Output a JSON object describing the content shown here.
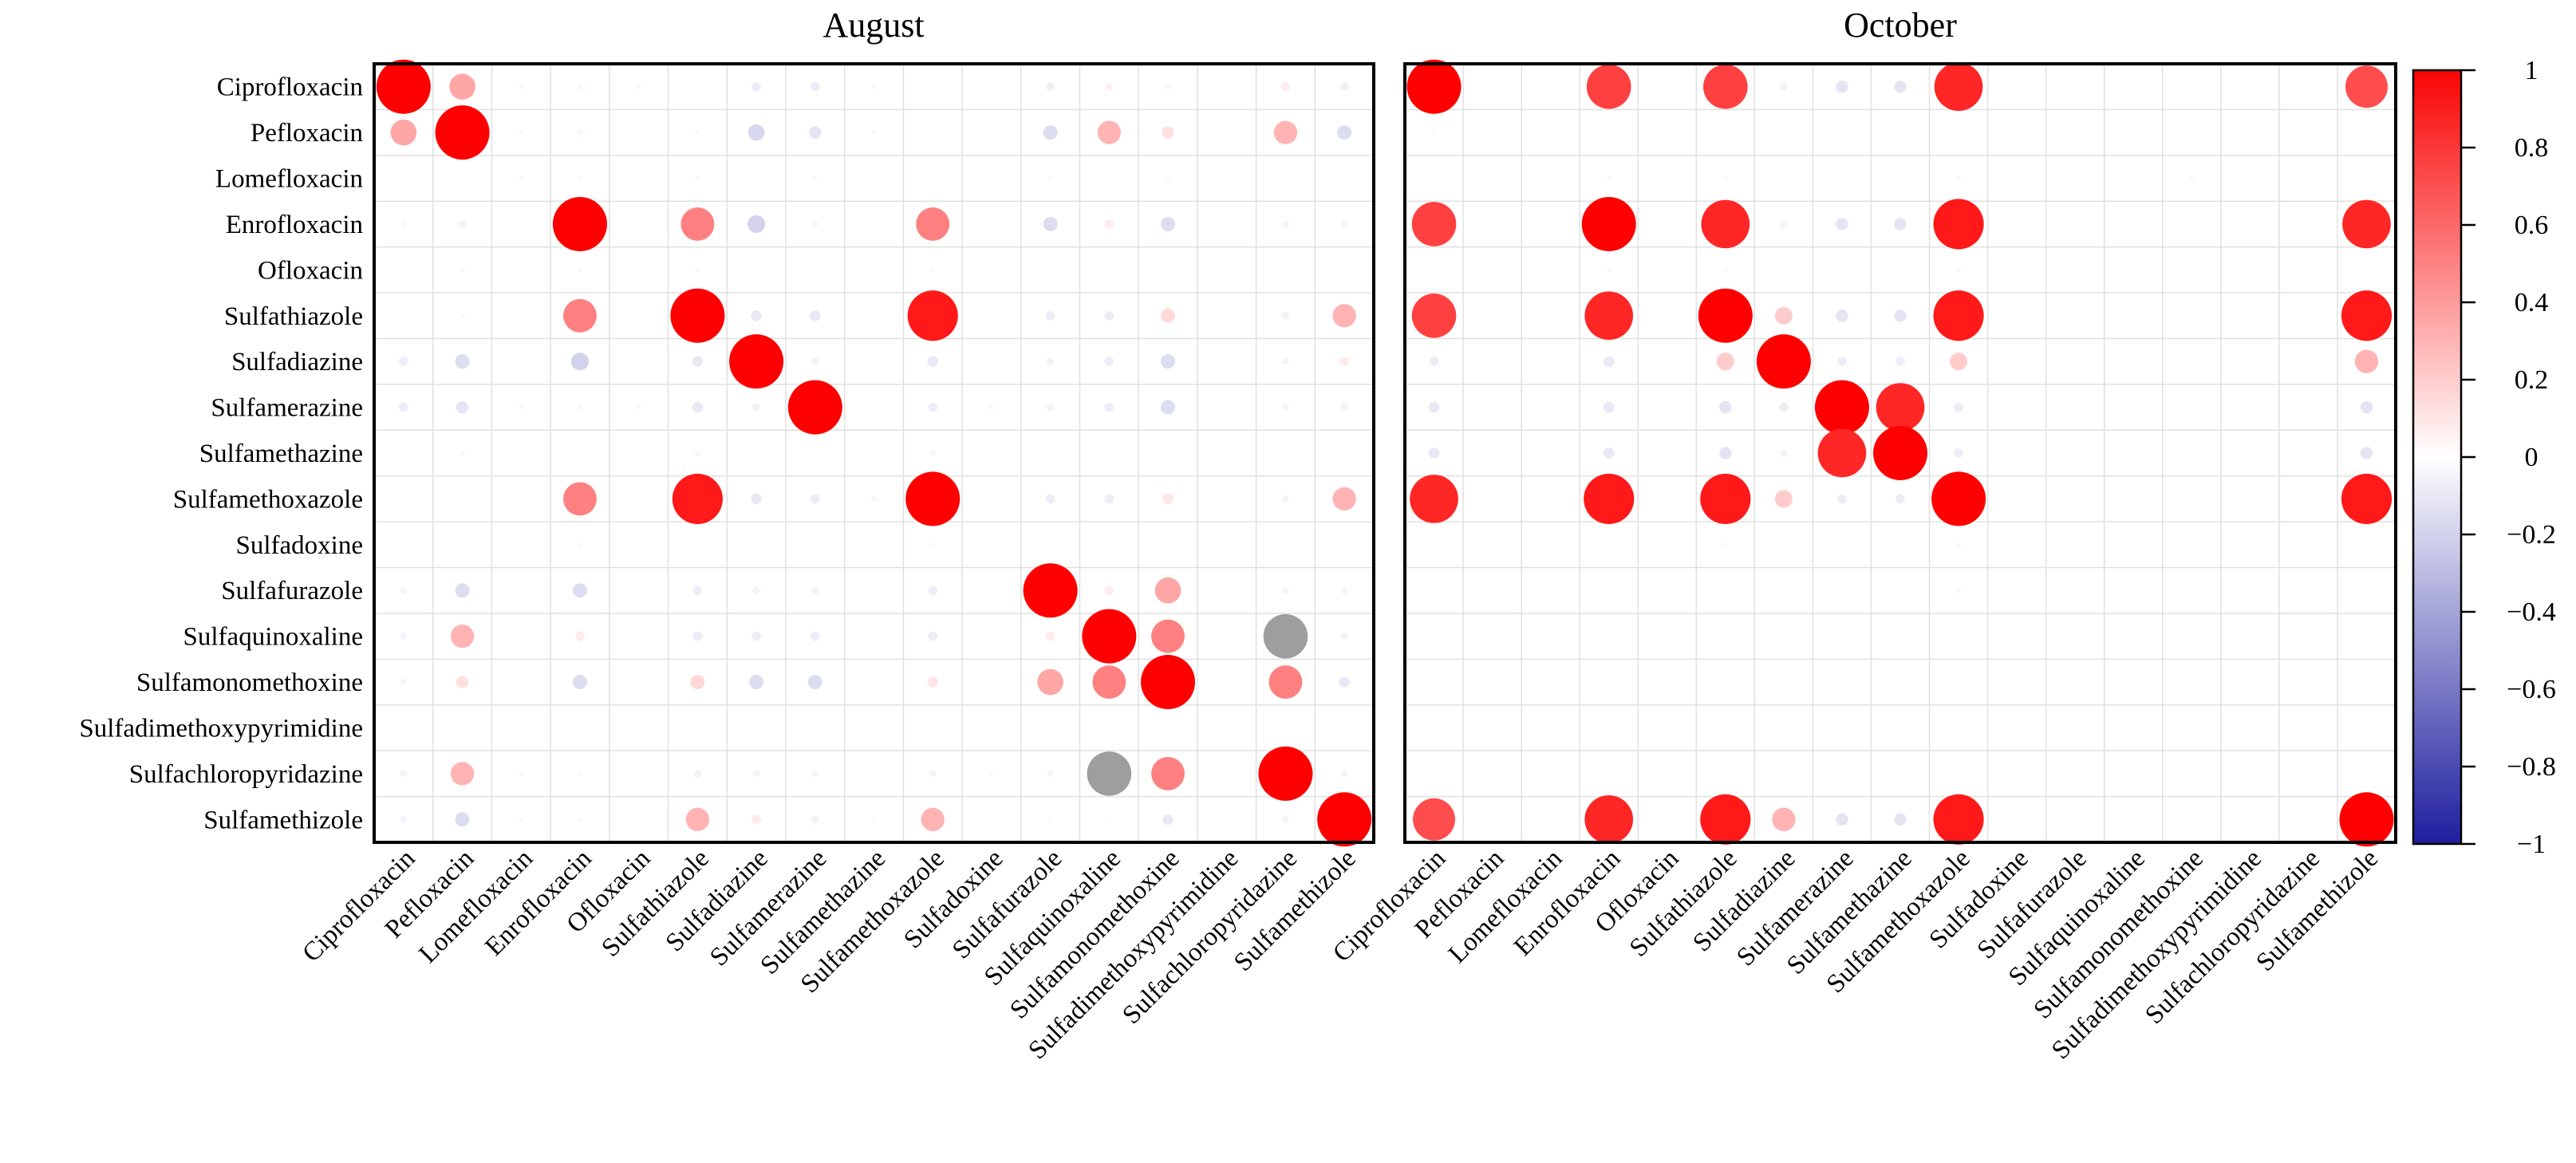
{
  "chart_data": {
    "type": "correlation-bubble-matrix",
    "title": "",
    "labels": [
      "Ciprofloxacin",
      "Pefloxacin",
      "Lomefloxacin",
      "Enrofloxacin",
      "Ofloxacin",
      "Sulfathiazole",
      "Sulfadiazine",
      "Sulfamerazine",
      "Sulfamethazine",
      "Sulfamethoxazole",
      "Sulfadoxine",
      "Sulfafurazole",
      "Sulfaquinoxaline",
      "Sulfamonomethoxine",
      "Sulfadimethoxypyrimidine",
      "Sulfachloropyridazine",
      "Sulfamethizole"
    ],
    "value_range": [
      -1,
      1
    ],
    "legend_position": "right",
    "grid": true,
    "panels": [
      {
        "title": "August",
        "cells": [
          [
            1,
            1,
            1
          ],
          [
            1,
            2,
            0.35
          ],
          [
            1,
            3,
            0.03
          ],
          [
            1,
            4,
            0.04
          ],
          [
            1,
            5,
            0.03
          ],
          [
            1,
            7,
            -0.08
          ],
          [
            1,
            8,
            -0.08
          ],
          [
            1,
            9,
            -0.03
          ],
          [
            1,
            12,
            -0.07
          ],
          [
            1,
            13,
            0.06
          ],
          [
            1,
            14,
            -0.04
          ],
          [
            1,
            16,
            0.08
          ],
          [
            1,
            17,
            -0.07
          ],
          [
            2,
            1,
            0.35
          ],
          [
            2,
            2,
            1
          ],
          [
            2,
            3,
            0.03
          ],
          [
            2,
            4,
            0.04
          ],
          [
            2,
            6,
            0.03
          ],
          [
            2,
            7,
            -0.18
          ],
          [
            2,
            8,
            -0.12
          ],
          [
            2,
            9,
            -0.03
          ],
          [
            2,
            12,
            -0.15
          ],
          [
            2,
            13,
            0.3
          ],
          [
            2,
            14,
            0.12
          ],
          [
            2,
            16,
            0.3
          ],
          [
            2,
            17,
            -0.15
          ],
          [
            3,
            3,
            0.03
          ],
          [
            3,
            4,
            0.03
          ],
          [
            3,
            6,
            0.03
          ],
          [
            3,
            8,
            0.03
          ],
          [
            3,
            12,
            0.03
          ],
          [
            3,
            14,
            0.03
          ],
          [
            4,
            1,
            0.04
          ],
          [
            4,
            2,
            -0.06
          ],
          [
            4,
            4,
            1
          ],
          [
            4,
            6,
            0.5
          ],
          [
            4,
            7,
            -0.2
          ],
          [
            4,
            8,
            -0.04
          ],
          [
            4,
            10,
            0.5
          ],
          [
            4,
            12,
            -0.15
          ],
          [
            4,
            13,
            0.08
          ],
          [
            4,
            14,
            -0.15
          ],
          [
            4,
            16,
            -0.05
          ],
          [
            4,
            17,
            -0.05
          ],
          [
            5,
            2,
            0.03
          ],
          [
            5,
            4,
            0.03
          ],
          [
            5,
            6,
            0.03
          ],
          [
            5,
            10,
            0.03
          ],
          [
            6,
            2,
            0.03
          ],
          [
            6,
            4,
            0.5
          ],
          [
            6,
            6,
            1
          ],
          [
            6,
            7,
            -0.1
          ],
          [
            6,
            8,
            -0.1
          ],
          [
            6,
            10,
            0.9
          ],
          [
            6,
            12,
            -0.08
          ],
          [
            6,
            13,
            -0.08
          ],
          [
            6,
            14,
            0.15
          ],
          [
            6,
            16,
            -0.06
          ],
          [
            6,
            17,
            0.3
          ],
          [
            7,
            1,
            -0.08
          ],
          [
            7,
            2,
            -0.15
          ],
          [
            7,
            4,
            -0.2
          ],
          [
            7,
            6,
            -0.1
          ],
          [
            7,
            7,
            1
          ],
          [
            7,
            8,
            -0.06
          ],
          [
            7,
            10,
            -0.1
          ],
          [
            7,
            12,
            -0.06
          ],
          [
            7,
            13,
            -0.08
          ],
          [
            7,
            14,
            -0.15
          ],
          [
            7,
            16,
            -0.05
          ],
          [
            7,
            17,
            0.08
          ],
          [
            8,
            1,
            -0.08
          ],
          [
            8,
            2,
            -0.12
          ],
          [
            8,
            3,
            0.03
          ],
          [
            8,
            4,
            -0.04
          ],
          [
            8,
            5,
            0.03
          ],
          [
            8,
            6,
            -0.1
          ],
          [
            8,
            7,
            -0.06
          ],
          [
            8,
            8,
            1
          ],
          [
            8,
            10,
            -0.08
          ],
          [
            8,
            11,
            0.03
          ],
          [
            8,
            12,
            -0.06
          ],
          [
            8,
            13,
            -0.08
          ],
          [
            8,
            14,
            -0.15
          ],
          [
            8,
            16,
            -0.05
          ],
          [
            8,
            17,
            -0.06
          ],
          [
            9,
            2,
            -0.03
          ],
          [
            9,
            6,
            -0.04
          ],
          [
            9,
            10,
            -0.04
          ],
          [
            10,
            4,
            0.5
          ],
          [
            10,
            6,
            0.9
          ],
          [
            10,
            7,
            -0.1
          ],
          [
            10,
            8,
            -0.08
          ],
          [
            10,
            9,
            -0.04
          ],
          [
            10,
            10,
            1
          ],
          [
            10,
            12,
            -0.08
          ],
          [
            10,
            13,
            -0.08
          ],
          [
            10,
            14,
            0.1
          ],
          [
            10,
            16,
            -0.05
          ],
          [
            10,
            17,
            0.3
          ],
          [
            11,
            4,
            0.03
          ],
          [
            11,
            10,
            0.03
          ],
          [
            12,
            1,
            -0.05
          ],
          [
            12,
            2,
            -0.15
          ],
          [
            12,
            4,
            -0.15
          ],
          [
            12,
            6,
            -0.08
          ],
          [
            12,
            7,
            -0.06
          ],
          [
            12,
            8,
            -0.06
          ],
          [
            12,
            10,
            -0.08
          ],
          [
            12,
            12,
            1
          ],
          [
            12,
            13,
            0.08
          ],
          [
            12,
            14,
            0.35
          ],
          [
            12,
            16,
            -0.05
          ],
          [
            12,
            17,
            -0.05
          ],
          [
            13,
            1,
            -0.05
          ],
          [
            13,
            2,
            0.3
          ],
          [
            13,
            4,
            0.08
          ],
          [
            13,
            6,
            -0.08
          ],
          [
            13,
            7,
            -0.08
          ],
          [
            13,
            8,
            -0.08
          ],
          [
            13,
            10,
            -0.08
          ],
          [
            13,
            12,
            0.08
          ],
          [
            13,
            13,
            1
          ],
          [
            13,
            14,
            0.5
          ],
          [
            13,
            17,
            -0.06
          ],
          [
            14,
            1,
            -0.05
          ],
          [
            14,
            2,
            0.12
          ],
          [
            14,
            4,
            -0.15
          ],
          [
            14,
            6,
            0.15
          ],
          [
            14,
            7,
            -0.15
          ],
          [
            14,
            8,
            -0.15
          ],
          [
            14,
            10,
            0.1
          ],
          [
            14,
            12,
            0.35
          ],
          [
            14,
            13,
            0.5
          ],
          [
            14,
            14,
            1
          ],
          [
            14,
            16,
            0.5
          ],
          [
            14,
            17,
            -0.1
          ],
          [
            16,
            1,
            -0.05
          ],
          [
            16,
            2,
            0.3
          ],
          [
            16,
            3,
            0.03
          ],
          [
            16,
            4,
            0.03
          ],
          [
            16,
            6,
            -0.06
          ],
          [
            16,
            7,
            -0.05
          ],
          [
            16,
            8,
            -0.05
          ],
          [
            16,
            10,
            -0.05
          ],
          [
            16,
            11,
            0.03
          ],
          [
            16,
            12,
            -0.05
          ],
          [
            16,
            14,
            0.5
          ],
          [
            16,
            16,
            1
          ],
          [
            16,
            17,
            -0.05
          ],
          [
            17,
            1,
            -0.05
          ],
          [
            17,
            2,
            -0.15
          ],
          [
            17,
            3,
            0.03
          ],
          [
            17,
            4,
            0.03
          ],
          [
            17,
            6,
            0.3
          ],
          [
            17,
            7,
            0.08
          ],
          [
            17,
            8,
            -0.06
          ],
          [
            17,
            9,
            0.03
          ],
          [
            17,
            10,
            0.3
          ],
          [
            17,
            12,
            0.03
          ],
          [
            17,
            13,
            0.03
          ],
          [
            17,
            14,
            -0.1
          ],
          [
            17,
            16,
            -0.05
          ],
          [
            17,
            17,
            1
          ]
        ],
        "gray_cells": [
          [
            13,
            16,
            0.75
          ],
          [
            16,
            13,
            0.75
          ]
        ]
      },
      {
        "title": "October",
        "cells": [
          [
            1,
            1,
            1
          ],
          [
            1,
            4,
            0.75
          ],
          [
            1,
            6,
            0.75
          ],
          [
            1,
            7,
            -0.06
          ],
          [
            1,
            8,
            -0.12
          ],
          [
            1,
            9,
            -0.12
          ],
          [
            1,
            10,
            0.85
          ],
          [
            1,
            17,
            0.7
          ],
          [
            2,
            1,
            0.03
          ],
          [
            3,
            4,
            0.03
          ],
          [
            3,
            6,
            0.03
          ],
          [
            3,
            10,
            0.03
          ],
          [
            3,
            14,
            0.03
          ],
          [
            4,
            1,
            0.75
          ],
          [
            4,
            4,
            1
          ],
          [
            4,
            6,
            0.85
          ],
          [
            4,
            7,
            -0.06
          ],
          [
            4,
            8,
            -0.12
          ],
          [
            4,
            9,
            -0.12
          ],
          [
            4,
            10,
            0.9
          ],
          [
            4,
            17,
            0.85
          ],
          [
            5,
            4,
            0.03
          ],
          [
            5,
            6,
            0.03
          ],
          [
            5,
            10,
            0.03
          ],
          [
            6,
            1,
            0.75
          ],
          [
            6,
            4,
            0.85
          ],
          [
            6,
            6,
            1
          ],
          [
            6,
            7,
            0.2
          ],
          [
            6,
            8,
            -0.12
          ],
          [
            6,
            9,
            -0.12
          ],
          [
            6,
            10,
            0.9
          ],
          [
            6,
            17,
            0.9
          ],
          [
            7,
            1,
            -0.08
          ],
          [
            7,
            4,
            -0.1
          ],
          [
            7,
            6,
            0.2
          ],
          [
            7,
            7,
            1
          ],
          [
            7,
            8,
            -0.08
          ],
          [
            7,
            9,
            -0.08
          ],
          [
            7,
            10,
            0.2
          ],
          [
            7,
            17,
            0.3
          ],
          [
            8,
            1,
            -0.1
          ],
          [
            8,
            4,
            -0.1
          ],
          [
            8,
            6,
            -0.12
          ],
          [
            8,
            7,
            -0.08
          ],
          [
            8,
            8,
            1
          ],
          [
            8,
            9,
            0.85
          ],
          [
            8,
            10,
            -0.08
          ],
          [
            8,
            17,
            -0.12
          ],
          [
            9,
            1,
            -0.1
          ],
          [
            9,
            4,
            -0.1
          ],
          [
            9,
            6,
            -0.12
          ],
          [
            9,
            7,
            -0.06
          ],
          [
            9,
            8,
            0.85
          ],
          [
            9,
            9,
            1
          ],
          [
            9,
            10,
            -0.08
          ],
          [
            9,
            17,
            -0.12
          ],
          [
            10,
            1,
            0.85
          ],
          [
            10,
            4,
            0.9
          ],
          [
            10,
            6,
            0.9
          ],
          [
            10,
            7,
            0.2
          ],
          [
            10,
            8,
            -0.08
          ],
          [
            10,
            9,
            -0.08
          ],
          [
            10,
            10,
            1
          ],
          [
            10,
            17,
            0.9
          ],
          [
            11,
            6,
            0.03
          ],
          [
            11,
            10,
            0.03
          ],
          [
            12,
            10,
            0.03
          ],
          [
            17,
            1,
            0.7
          ],
          [
            17,
            4,
            0.85
          ],
          [
            17,
            6,
            0.9
          ],
          [
            17,
            7,
            0.3
          ],
          [
            17,
            8,
            -0.12
          ],
          [
            17,
            9,
            -0.12
          ],
          [
            17,
            10,
            0.9
          ],
          [
            17,
            17,
            1
          ]
        ],
        "gray_cells": []
      }
    ],
    "colorbar": {
      "tick_labels": [
        "1",
        "0.8",
        "0.6",
        "0.4",
        "0.2",
        "0",
        "−0.2",
        "−0.4",
        "−0.6",
        "−0.8",
        "−1"
      ],
      "tick_values": [
        1,
        0.8,
        0.6,
        0.4,
        0.2,
        0,
        -0.2,
        -0.4,
        -0.6,
        -0.8,
        -1
      ],
      "top_color": "#FA0505",
      "mid_color": "#FFFFFF",
      "bottom_color": "#1E1E9E"
    },
    "colors": {
      "positive_max": "#FF0000",
      "negative_max": "#1E1E9E",
      "gray_marker": "#9E9E9E",
      "gridline": "#E0E0E0",
      "border": "#000000",
      "background": "#FFFFFF"
    }
  }
}
